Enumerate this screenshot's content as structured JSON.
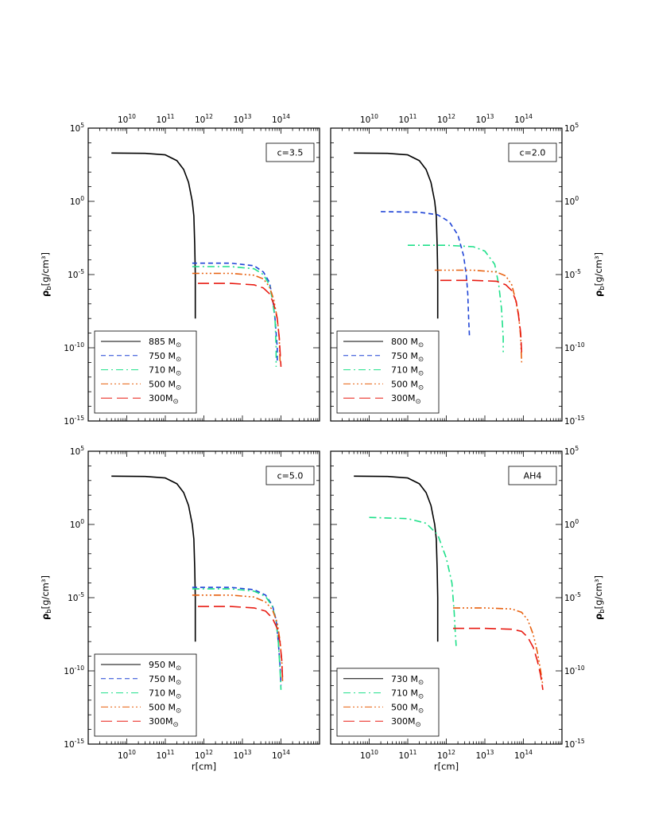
{
  "chart_data": [
    {
      "type": "line",
      "annotation": "c=3.5",
      "xlabel": "",
      "ylabel": "ρ_b[g/cm³]",
      "x_scale": "log",
      "y_scale": "log",
      "xlim": [
        1000000000.0,
        1000000000000000.0
      ],
      "ylim": [
        1e-15,
        100000.0
      ],
      "x_ticks_bottom": [],
      "x_ticks_top": [
        "10^10",
        "10^11",
        "10^12",
        "10^13",
        "10^14"
      ],
      "y_ticks": [
        "10^5",
        "10^0",
        "10^-5",
        "10^-10",
        "10^-15"
      ],
      "show_left_y_labels": true,
      "show_right_y_labels": false,
      "legend_position": "bottom-left",
      "series": [
        {
          "name": "885 M⊙",
          "color": "#000000",
          "dash": "solid",
          "width": 1.6,
          "x": [
            4000000000.0,
            30000000000.0,
            100000000000.0,
            200000000000.0,
            300000000000.0,
            400000000000.0,
            500000000000.0,
            550000000000.0,
            580000000000.0,
            600000000000.0,
            600000000000.0
          ],
          "y": [
            2000.0,
            1900.0,
            1500.0,
            600.0,
            150.0,
            20.0,
            1.0,
            0.1,
            0.001,
            1e-05,
            1e-08
          ]
        },
        {
          "name": "750 M⊙",
          "color": "#1f44d6",
          "dash": "6,4",
          "width": 1.6,
          "x": [
            500000000000.0,
            5000000000000.0,
            20000000000000.0,
            35000000000000.0,
            50000000000000.0,
            60000000000000.0,
            70000000000000.0,
            80000000000000.0,
            80000000000000.0
          ],
          "y": [
            6e-05,
            6e-05,
            4e-05,
            1.5e-05,
            3e-06,
            3e-07,
            1e-08,
            1e-10,
            1e-11
          ]
        },
        {
          "name": "710 M⊙",
          "color": "#1fe08a",
          "dash": "9,4,2,4",
          "width": 1.6,
          "x": [
            500000000000.0,
            5000000000000.0,
            20000000000000.0,
            35000000000000.0,
            50000000000000.0,
            60000000000000.0,
            70000000000000.0,
            75000000000000.0,
            75000000000000.0
          ],
          "y": [
            3.5e-05,
            3.5e-05,
            2.5e-05,
            1e-05,
            2e-06,
            2e-07,
            1e-08,
            1e-10,
            5e-12
          ]
        },
        {
          "name": "500 M⊙",
          "color": "#e8600f",
          "dash": "9,3,2,3,2,3,2,3",
          "width": 1.6,
          "x": [
            500000000000.0,
            5000000000000.0,
            20000000000000.0,
            35000000000000.0,
            50000000000000.0,
            65000000000000.0,
            80000000000000.0,
            90000000000000.0,
            95000000000000.0
          ],
          "y": [
            1.2e-05,
            1.2e-05,
            9e-06,
            5e-06,
            1.5e-06,
            2e-07,
            1e-08,
            5e-10,
            1e-11
          ]
        },
        {
          "name": "300M⊙",
          "color": "#e81b12",
          "dash": "14,6",
          "width": 1.6,
          "x": [
            700000000000.0,
            5000000000000.0,
            20000000000000.0,
            35000000000000.0,
            50000000000000.0,
            65000000000000.0,
            80000000000000.0,
            90000000000000.0,
            100000000000000.0
          ],
          "y": [
            2.5e-06,
            2.5e-06,
            2e-06,
            1.2e-06,
            5e-07,
            1e-07,
            1e-08,
            5e-10,
            5e-12
          ]
        }
      ]
    },
    {
      "type": "line",
      "annotation": "c=2.0",
      "xlabel": "",
      "ylabel": "ρ_b[g/cm³]",
      "x_scale": "log",
      "y_scale": "log",
      "xlim": [
        1000000000.0,
        1000000000000000.0
      ],
      "ylim": [
        1e-15,
        100000.0
      ],
      "x_ticks_bottom": [],
      "x_ticks_top": [
        "10^10",
        "10^11",
        "10^12",
        "10^13",
        "10^14"
      ],
      "y_ticks": [
        "10^5",
        "10^0",
        "10^-5",
        "10^-10",
        "10^-15"
      ],
      "show_left_y_labels": false,
      "show_right_y_labels": true,
      "legend_position": "bottom-left",
      "series": [
        {
          "name": "800 M⊙",
          "color": "#000000",
          "dash": "solid",
          "width": 1.6,
          "x": [
            4000000000.0,
            30000000000.0,
            100000000000.0,
            200000000000.0,
            300000000000.0,
            400000000000.0,
            500000000000.0,
            550000000000.0,
            580000000000.0,
            600000000000.0,
            600000000000.0
          ],
          "y": [
            2000.0,
            1900.0,
            1500.0,
            600.0,
            150.0,
            20.0,
            1.0,
            0.1,
            0.001,
            1e-05,
            1e-08
          ]
        },
        {
          "name": "750 M⊙",
          "color": "#1f44d6",
          "dash": "6,4",
          "width": 1.6,
          "x": [
            20000000000.0,
            200000000000.0,
            600000000000.0,
            1200000000000.0,
            2000000000000.0,
            2800000000000.0,
            3300000000000.0,
            3600000000000.0,
            3800000000000.0,
            4000000000000.0
          ],
          "y": [
            0.2,
            0.18,
            0.12,
            0.04,
            0.005,
            0.0002,
            1e-05,
            5e-07,
            1e-08,
            5e-10
          ]
        },
        {
          "name": "710 M⊙",
          "color": "#1fe08a",
          "dash": "9,4,2,4",
          "width": 1.6,
          "x": [
            100000000000.0,
            1000000000000.0,
            5000000000000.0,
            10000000000000.0,
            18000000000000.0,
            23000000000000.0,
            27000000000000.0,
            30000000000000.0,
            30000000000000.0
          ],
          "y": [
            0.001,
            0.001,
            0.0008,
            0.0004,
            5e-05,
            2e-06,
            5e-08,
            5e-10,
            5e-11
          ]
        },
        {
          "name": "500 M⊙",
          "color": "#e8600f",
          "dash": "9,3,2,3,2,3,2,3",
          "width": 1.6,
          "x": [
            500000000000.0,
            5000000000000.0,
            20000000000000.0,
            35000000000000.0,
            50000000000000.0,
            60000000000000.0,
            75000000000000.0,
            85000000000000.0,
            90000000000000.0
          ],
          "y": [
            2e-05,
            2e-05,
            1.5e-05,
            8e-06,
            2e-06,
            3e-07,
            2e-08,
            5e-10,
            1e-11
          ]
        },
        {
          "name": "300M⊙",
          "color": "#e81b12",
          "dash": "14,6",
          "width": 1.6,
          "x": [
            700000000000.0,
            5000000000000.0,
            20000000000000.0,
            35000000000000.0,
            50000000000000.0,
            65000000000000.0,
            75000000000000.0,
            85000000000000.0,
            90000000000000.0
          ],
          "y": [
            4e-06,
            4e-06,
            3.5e-06,
            2e-06,
            8e-07,
            1.5e-07,
            1.5e-08,
            1e-09,
            5e-11
          ]
        }
      ]
    },
    {
      "type": "line",
      "annotation": "c=5.0",
      "xlabel": "r[cm]",
      "ylabel": "ρ_b[g/cm³]",
      "x_scale": "log",
      "y_scale": "log",
      "xlim": [
        1000000000.0,
        1000000000000000.0
      ],
      "ylim": [
        1e-15,
        100000.0
      ],
      "x_ticks_bottom": [
        "10^10",
        "10^11",
        "10^12",
        "10^13",
        "10^14"
      ],
      "x_ticks_top": [],
      "y_ticks": [
        "10^5",
        "10^0",
        "10^-5",
        "10^-10",
        "10^-15"
      ],
      "show_left_y_labels": true,
      "show_right_y_labels": false,
      "legend_position": "bottom-left",
      "series": [
        {
          "name": "950 M⊙",
          "color": "#000000",
          "dash": "solid",
          "width": 1.6,
          "x": [
            4000000000.0,
            30000000000.0,
            100000000000.0,
            200000000000.0,
            300000000000.0,
            400000000000.0,
            500000000000.0,
            550000000000.0,
            580000000000.0,
            600000000000.0,
            600000000000.0
          ],
          "y": [
            2000.0,
            1900.0,
            1500.0,
            600.0,
            150.0,
            20.0,
            1.0,
            0.1,
            0.001,
            1e-05,
            1e-08
          ]
        },
        {
          "name": "750 M⊙",
          "color": "#1f44d6",
          "dash": "6,4",
          "width": 1.6,
          "x": [
            500000000000.0,
            5000000000000.0,
            20000000000000.0,
            40000000000000.0,
            60000000000000.0,
            75000000000000.0,
            85000000000000.0,
            95000000000000.0,
            100000000000000.0
          ],
          "y": [
            5e-05,
            5e-05,
            3.5e-05,
            1.5e-05,
            3e-06,
            3e-07,
            1e-08,
            2e-10,
            1e-11
          ]
        },
        {
          "name": "710 M⊙",
          "color": "#1fe08a",
          "dash": "9,4,2,4",
          "width": 1.6,
          "x": [
            500000000000.0,
            5000000000000.0,
            20000000000000.0,
            40000000000000.0,
            60000000000000.0,
            75000000000000.0,
            85000000000000.0,
            95000000000000.0,
            100000000000000.0
          ],
          "y": [
            4e-05,
            4e-05,
            2.8e-05,
            1.2e-05,
            2.5e-06,
            2.5e-07,
            1e-08,
            1e-10,
            5e-12
          ]
        },
        {
          "name": "500 M⊙",
          "color": "#e8600f",
          "dash": "9,3,2,3,2,3,2,3",
          "width": 1.6,
          "x": [
            500000000000.0,
            5000000000000.0,
            20000000000000.0,
            40000000000000.0,
            60000000000000.0,
            80000000000000.0,
            95000000000000.0,
            105000000000000.0,
            110000000000000.0
          ],
          "y": [
            1.5e-05,
            1.5e-05,
            1.1e-05,
            5e-06,
            1.5e-06,
            2e-07,
            1e-08,
            5e-10,
            2e-11
          ]
        },
        {
          "name": "300M⊙",
          "color": "#e81b12",
          "dash": "14,6",
          "width": 1.6,
          "x": [
            700000000000.0,
            5000000000000.0,
            20000000000000.0,
            40000000000000.0,
            60000000000000.0,
            80000000000000.0,
            95000000000000.0,
            105000000000000.0,
            110000000000000.0
          ],
          "y": [
            2.5e-06,
            2.5e-06,
            2e-06,
            1.2e-06,
            4e-07,
            8e-08,
            8e-09,
            5e-10,
            3e-11
          ]
        }
      ]
    },
    {
      "type": "line",
      "annotation": "AH4",
      "xlabel": "r[cm]",
      "ylabel": "ρ_b[g/cm³]",
      "x_scale": "log",
      "y_scale": "log",
      "xlim": [
        1000000000.0,
        1000000000000000.0
      ],
      "ylim": [
        1e-15,
        100000.0
      ],
      "x_ticks_bottom": [
        "10^10",
        "10^11",
        "10^12",
        "10^13",
        "10^14"
      ],
      "x_ticks_top": [],
      "y_ticks": [
        "10^5",
        "10^0",
        "10^-5",
        "10^-10",
        "10^-15"
      ],
      "show_left_y_labels": false,
      "show_right_y_labels": true,
      "legend_position": "bottom-left",
      "series": [
        {
          "name": "730 M⊙",
          "color": "#000000",
          "dash": "solid",
          "width": 1.6,
          "x": [
            4000000000.0,
            30000000000.0,
            100000000000.0,
            200000000000.0,
            300000000000.0,
            400000000000.0,
            500000000000.0,
            550000000000.0,
            580000000000.0,
            600000000000.0,
            600000000000.0
          ],
          "y": [
            2000.0,
            1900.0,
            1500.0,
            600.0,
            150.0,
            20.0,
            1.0,
            0.1,
            0.001,
            1e-05,
            1e-08
          ]
        },
        {
          "name": "710 M⊙",
          "color": "#1fe08a",
          "dash": "9,4,2,4",
          "width": 1.6,
          "x": [
            10000000000.0,
            100000000000.0,
            300000000000.0,
            600000000000.0,
            1000000000000.0,
            1400000000000.0,
            1600000000000.0,
            1700000000000.0,
            1800000000000.0
          ],
          "y": [
            3.0,
            2.5,
            1.2,
            0.2,
            0.005,
            0.0001,
            1e-06,
            5e-08,
            5e-09
          ]
        },
        {
          "name": "500 M⊙",
          "color": "#e8600f",
          "dash": "9,3,2,3,2,3,2,3",
          "width": 1.6,
          "x": [
            1500000000000.0,
            10000000000000.0,
            50000000000000.0,
            90000000000000.0,
            130000000000000.0,
            180000000000000.0,
            230000000000000.0,
            280000000000000.0,
            320000000000000.0
          ],
          "y": [
            2e-06,
            2e-06,
            1.7e-06,
            1e-06,
            3e-07,
            3e-08,
            2e-09,
            1e-10,
            1e-11
          ]
        },
        {
          "name": "300M⊙",
          "color": "#e81b12",
          "dash": "14,6",
          "width": 1.6,
          "x": [
            1500000000000.0,
            10000000000000.0,
            50000000000000.0,
            90000000000000.0,
            130000000000000.0,
            180000000000000.0,
            230000000000000.0,
            280000000000000.0,
            320000000000000.0
          ],
          "y": [
            8e-08,
            8e-08,
            7e-08,
            5e-08,
            2e-08,
            4e-09,
            5e-10,
            5e-11,
            5e-12
          ]
        }
      ]
    }
  ]
}
